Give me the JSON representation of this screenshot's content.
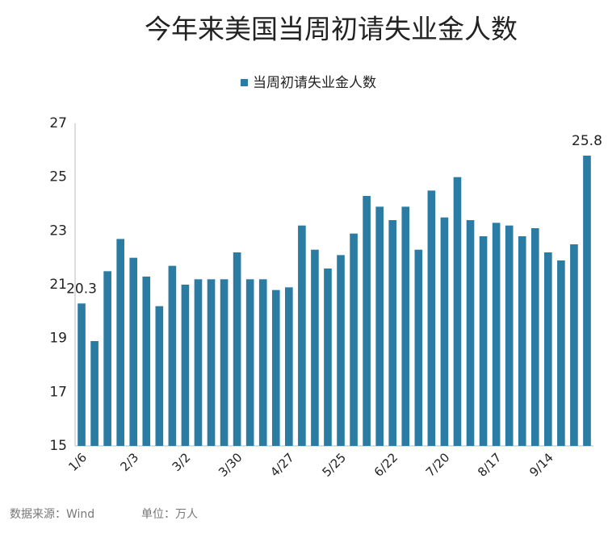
{
  "chart_data": {
    "type": "bar",
    "title": "今年来美国当周初请失业金人数",
    "source": "数据来源：Wind",
    "unit": "单位：万人",
    "series": [
      {
        "name": "当周初请失业金人数",
        "color": "#2b7ca3",
        "values": [
          20.3,
          18.9,
          21.5,
          22.7,
          22.0,
          21.3,
          20.2,
          21.7,
          21.0,
          21.2,
          21.2,
          21.2,
          22.2,
          21.2,
          21.2,
          20.8,
          20.9,
          23.2,
          22.3,
          21.6,
          22.1,
          22.9,
          24.3,
          23.9,
          23.4,
          23.9,
          22.3,
          24.5,
          23.5,
          25.0,
          23.4,
          22.8,
          23.3,
          23.2,
          22.8,
          23.1,
          22.2,
          21.9,
          22.5,
          25.8
        ],
        "value_labels": [
          "20.3",
          null,
          null,
          null,
          null,
          null,
          null,
          null,
          null,
          null,
          null,
          null,
          null,
          null,
          null,
          null,
          null,
          null,
          null,
          null,
          null,
          null,
          null,
          null,
          null,
          null,
          null,
          null,
          null,
          null,
          null,
          null,
          null,
          null,
          null,
          null,
          null,
          null,
          null,
          "25.8"
        ]
      }
    ],
    "categories": [
      "1/6",
      null,
      null,
      null,
      "2/3",
      null,
      null,
      null,
      "3/2",
      null,
      null,
      null,
      "3/30",
      null,
      null,
      null,
      "4/27",
      null,
      null,
      null,
      "5/25",
      null,
      null,
      null,
      "6/22",
      null,
      null,
      null,
      "7/20",
      null,
      null,
      null,
      "8/17",
      null,
      null,
      null,
      "9/14",
      null,
      null,
      null
    ],
    "ylim": [
      15,
      27
    ],
    "yticks": [
      15,
      17,
      19,
      21,
      23,
      25,
      27
    ],
    "grid": false
  }
}
